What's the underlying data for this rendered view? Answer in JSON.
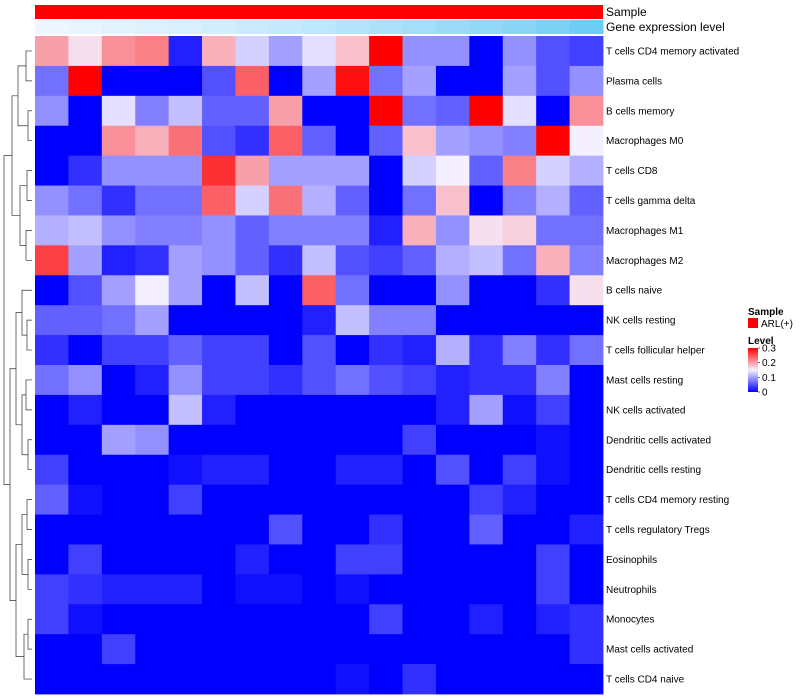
{
  "chart_data": {
    "type": "heatmap",
    "title": "",
    "annotation_labels": [
      "Sample",
      "Gene expression level"
    ],
    "sample_annotation_color": "#ff0000",
    "gene_expression_bar": [
      0.02,
      0.05,
      0.08,
      0.11,
      0.14,
      0.18,
      0.22,
      0.26,
      0.3,
      0.35,
      0.4,
      0.45,
      0.5,
      0.55,
      0.6,
      0.68,
      0.76
    ],
    "rows": [
      "T cells CD4 memory activated",
      "Plasma cells",
      "B cells memory",
      "Macrophages M0",
      "T cells CD8",
      "T cells gamma delta",
      "Macrophages M1",
      "Macrophages M2",
      "B cells naive",
      "NK cells resting",
      "T cells follicular helper",
      "Mast cells resting",
      "NK cells activated",
      "Dendritic cells activated",
      "Dendritic cells resting",
      "T cells CD4 memory resting",
      "T cells regulatory  Tregs",
      "Eosinophils",
      "Neutrophils",
      "Monocytes",
      "Mast cells activated",
      "T cells CD4 naive"
    ],
    "values": [
      [
        0.2,
        0.16,
        0.21,
        0.22,
        0.02,
        0.19,
        0.13,
        0.1,
        0.14,
        0.18,
        0.3,
        0.09,
        0.09,
        0.0,
        0.09,
        0.05,
        0.04
      ],
      [
        0.07,
        0.3,
        0.0,
        0.0,
        0.0,
        0.05,
        0.24,
        0.0,
        0.1,
        0.29,
        0.07,
        0.1,
        0.0,
        0.0,
        0.1,
        0.05,
        0.09
      ],
      [
        0.09,
        0.0,
        0.14,
        0.08,
        0.12,
        0.06,
        0.06,
        0.2,
        0.0,
        0.0,
        0.3,
        0.07,
        0.06,
        0.3,
        0.14,
        0.0,
        0.21
      ],
      [
        0.0,
        0.0,
        0.21,
        0.19,
        0.23,
        0.05,
        0.03,
        0.24,
        0.06,
        0.0,
        0.06,
        0.18,
        0.1,
        0.09,
        0.08,
        0.3,
        0.15
      ],
      [
        0.0,
        0.03,
        0.09,
        0.09,
        0.09,
        0.27,
        0.2,
        0.1,
        0.1,
        0.1,
        0.0,
        0.13,
        0.15,
        0.06,
        0.22,
        0.13,
        0.11
      ],
      [
        0.09,
        0.07,
        0.03,
        0.07,
        0.07,
        0.24,
        0.13,
        0.23,
        0.11,
        0.06,
        0.0,
        0.07,
        0.18,
        0.0,
        0.08,
        0.11,
        0.06
      ],
      [
        0.11,
        0.12,
        0.09,
        0.08,
        0.08,
        0.09,
        0.06,
        0.08,
        0.08,
        0.08,
        0.02,
        0.19,
        0.09,
        0.16,
        0.17,
        0.07,
        0.07
      ],
      [
        0.26,
        0.1,
        0.02,
        0.03,
        0.1,
        0.09,
        0.06,
        0.03,
        0.12,
        0.05,
        0.04,
        0.06,
        0.11,
        0.12,
        0.07,
        0.19,
        0.08
      ],
      [
        0.0,
        0.05,
        0.1,
        0.15,
        0.1,
        0.0,
        0.12,
        0.0,
        0.24,
        0.07,
        0.0,
        0.0,
        0.09,
        0.0,
        0.0,
        0.03,
        0.16
      ],
      [
        0.06,
        0.06,
        0.07,
        0.1,
        0.0,
        0.0,
        0.0,
        0.0,
        0.02,
        0.12,
        0.08,
        0.08,
        0.0,
        0.0,
        0.0,
        0.0,
        0.0
      ],
      [
        0.03,
        0.0,
        0.04,
        0.04,
        0.06,
        0.04,
        0.04,
        0.0,
        0.05,
        0.0,
        0.03,
        0.02,
        0.11,
        0.03,
        0.08,
        0.03,
        0.07
      ],
      [
        0.07,
        0.09,
        0.0,
        0.02,
        0.09,
        0.04,
        0.04,
        0.03,
        0.05,
        0.07,
        0.05,
        0.04,
        0.02,
        0.03,
        0.03,
        0.08,
        0.0
      ],
      [
        0.0,
        0.02,
        0.0,
        0.0,
        0.12,
        0.02,
        0.0,
        0.0,
        0.0,
        0.0,
        0.0,
        0.0,
        0.02,
        0.1,
        0.01,
        0.04,
        0.0
      ],
      [
        0.0,
        0.0,
        0.1,
        0.09,
        0.0,
        0.0,
        0.0,
        0.0,
        0.0,
        0.0,
        0.0,
        0.04,
        0.0,
        0.0,
        0.0,
        0.01,
        0.0
      ],
      [
        0.04,
        0.0,
        0.0,
        0.0,
        0.01,
        0.02,
        0.02,
        0.0,
        0.0,
        0.02,
        0.02,
        0.0,
        0.05,
        0.0,
        0.04,
        0.01,
        0.0
      ],
      [
        0.06,
        0.01,
        0.0,
        0.0,
        0.04,
        0.0,
        0.0,
        0.0,
        0.0,
        0.0,
        0.0,
        0.0,
        0.0,
        0.04,
        0.02,
        0.0,
        0.0
      ],
      [
        0.0,
        0.0,
        0.0,
        0.0,
        0.0,
        0.0,
        0.0,
        0.05,
        0.0,
        0.0,
        0.03,
        0.0,
        0.0,
        0.06,
        0.0,
        0.0,
        0.02
      ],
      [
        0.0,
        0.04,
        0.0,
        0.0,
        0.0,
        0.0,
        0.02,
        0.0,
        0.0,
        0.04,
        0.04,
        0.0,
        0.0,
        0.0,
        0.0,
        0.04,
        0.0
      ],
      [
        0.04,
        0.03,
        0.02,
        0.02,
        0.02,
        0.0,
        0.01,
        0.01,
        0.0,
        0.01,
        0.0,
        0.0,
        0.0,
        0.0,
        0.0,
        0.04,
        0.0
      ],
      [
        0.04,
        0.01,
        0.0,
        0.0,
        0.0,
        0.0,
        0.0,
        0.0,
        0.0,
        0.0,
        0.04,
        0.0,
        0.0,
        0.02,
        0.0,
        0.02,
        0.03
      ],
      [
        0.0,
        0.0,
        0.04,
        0.0,
        0.0,
        0.0,
        0.0,
        0.0,
        0.0,
        0.0,
        0.0,
        0.0,
        0.0,
        0.0,
        0.0,
        0.0,
        0.03
      ],
      [
        0.0,
        0.0,
        0.0,
        0.0,
        0.0,
        0.0,
        0.0,
        0.0,
        0.0,
        0.01,
        0.0,
        0.03,
        0.0,
        0.0,
        0.0,
        0.0,
        0.0
      ]
    ],
    "color_scale": {
      "min": 0,
      "max": 0.3,
      "colors": [
        "#0000ff",
        "#f5f0ff",
        "#ff0000"
      ],
      "ticks": [
        0,
        0.1,
        0.2,
        0.3
      ],
      "tick_labels": [
        "0",
        "0.1",
        "0.2",
        "0.3"
      ]
    },
    "legend": {
      "position": "right",
      "sample_title": "Sample",
      "sample_entry": "ARL(+)",
      "level_title": "Level"
    }
  }
}
